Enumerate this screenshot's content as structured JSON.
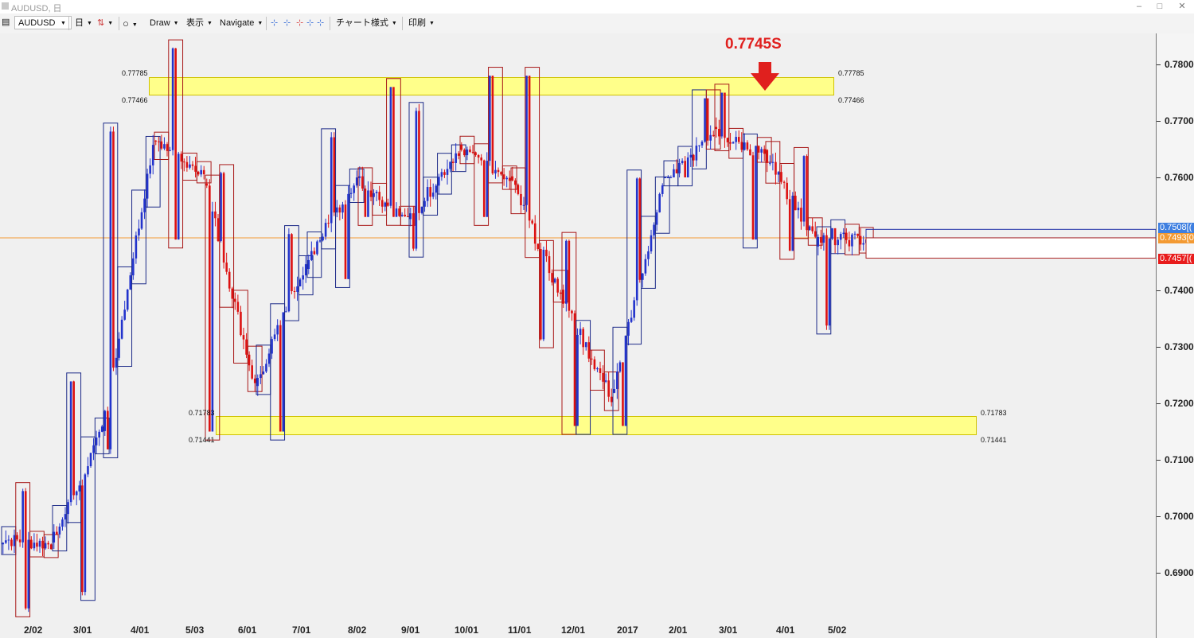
{
  "window": {
    "title": "AUDUSD, 日",
    "minimize": "–",
    "maximize": "□",
    "close": "✕"
  },
  "toolbar": {
    "symbol": "AUDUSD",
    "timeframe": "日",
    "circle_icon": "○",
    "draw": "Draw",
    "view": "表示",
    "navigate": "Navigate",
    "chart_style": "チャート様式",
    "print": "印刷",
    "crosshair_tools": [
      "⊹",
      "⊹",
      "⊹",
      "⊹",
      "⊹"
    ]
  },
  "chart": {
    "annotation": "0.7745S",
    "zone_top": {
      "upper": "0.77785",
      "lower": "0.77466"
    },
    "zone_bottom": {
      "upper": "0.71783",
      "lower": "0.71441"
    },
    "current_price": "0.7493[",
    "price_badges": [
      {
        "label": "0.7508[(",
        "color": "#3e7fe0"
      },
      {
        "label": "0.7493[0",
        "color": "#f39a33"
      },
      {
        "label": "0.7457[(",
        "color": "#e81c1c"
      }
    ],
    "price_axis": [
      "0.7800[0",
      "0.7700[0",
      "0.7600[0",
      "0.7400[0",
      "0.7300[0",
      "0.7200[0",
      "0.7100[0",
      "0.7000[0",
      "0.6900[0"
    ],
    "date_axis": [
      "2/02",
      "3/01",
      "4/01",
      "5/03",
      "6/01",
      "7/01",
      "8/02",
      "9/01",
      "10/01",
      "11/01",
      "12/01",
      "2017",
      "2/01",
      "3/01",
      "4/01",
      "5/02"
    ],
    "colors": {
      "up": "#2233cc",
      "down": "#dd1111",
      "box_up": "#1c2a88",
      "box_down": "#a81818",
      "zone": "#ffff8a",
      "price_line": "#f39a33"
    }
  },
  "chart_data": {
    "type": "candlestick",
    "symbol": "AUDUSD",
    "timeframe": "Daily",
    "ylim": [
      0.682,
      0.79
    ],
    "monthly_candles": [
      {
        "month": "2016-01",
        "open": 0.696,
        "high": 0.705,
        "low": 0.683,
        "close": 0.695
      },
      {
        "month": "2016-02",
        "open": 0.695,
        "high": 0.724,
        "low": 0.686,
        "close": 0.715
      },
      {
        "month": "2016-03",
        "open": 0.715,
        "high": 0.769,
        "low": 0.711,
        "close": 0.766
      },
      {
        "month": "2016-04",
        "open": 0.766,
        "high": 0.783,
        "low": 0.749,
        "close": 0.76
      },
      {
        "month": "2016-05",
        "open": 0.76,
        "high": 0.761,
        "low": 0.715,
        "close": 0.723
      },
      {
        "month": "2016-06",
        "open": 0.723,
        "high": 0.751,
        "low": 0.715,
        "close": 0.745
      },
      {
        "month": "2016-07",
        "open": 0.745,
        "high": 0.768,
        "low": 0.742,
        "close": 0.76
      },
      {
        "month": "2016-08",
        "open": 0.76,
        "high": 0.776,
        "low": 0.753,
        "close": 0.752
      },
      {
        "month": "2016-09",
        "open": 0.752,
        "high": 0.773,
        "low": 0.747,
        "close": 0.765
      },
      {
        "month": "2016-10",
        "open": 0.765,
        "high": 0.778,
        "low": 0.753,
        "close": 0.76
      },
      {
        "month": "2016-11",
        "open": 0.76,
        "high": 0.778,
        "low": 0.731,
        "close": 0.739
      },
      {
        "month": "2016-12",
        "open": 0.739,
        "high": 0.749,
        "low": 0.716,
        "close": 0.721
      },
      {
        "month": "2017-01",
        "open": 0.721,
        "high": 0.76,
        "low": 0.716,
        "close": 0.758
      },
      {
        "month": "2017-02",
        "open": 0.758,
        "high": 0.774,
        "low": 0.76,
        "close": 0.768
      },
      {
        "month": "2017-03",
        "open": 0.768,
        "high": 0.775,
        "low": 0.749,
        "close": 0.764
      },
      {
        "month": "2017-04",
        "open": 0.764,
        "high": 0.765,
        "low": 0.747,
        "close": 0.749
      },
      {
        "month": "2017-05",
        "open": 0.749,
        "high": 0.751,
        "low": 0.733,
        "close": 0.749
      }
    ]
  }
}
